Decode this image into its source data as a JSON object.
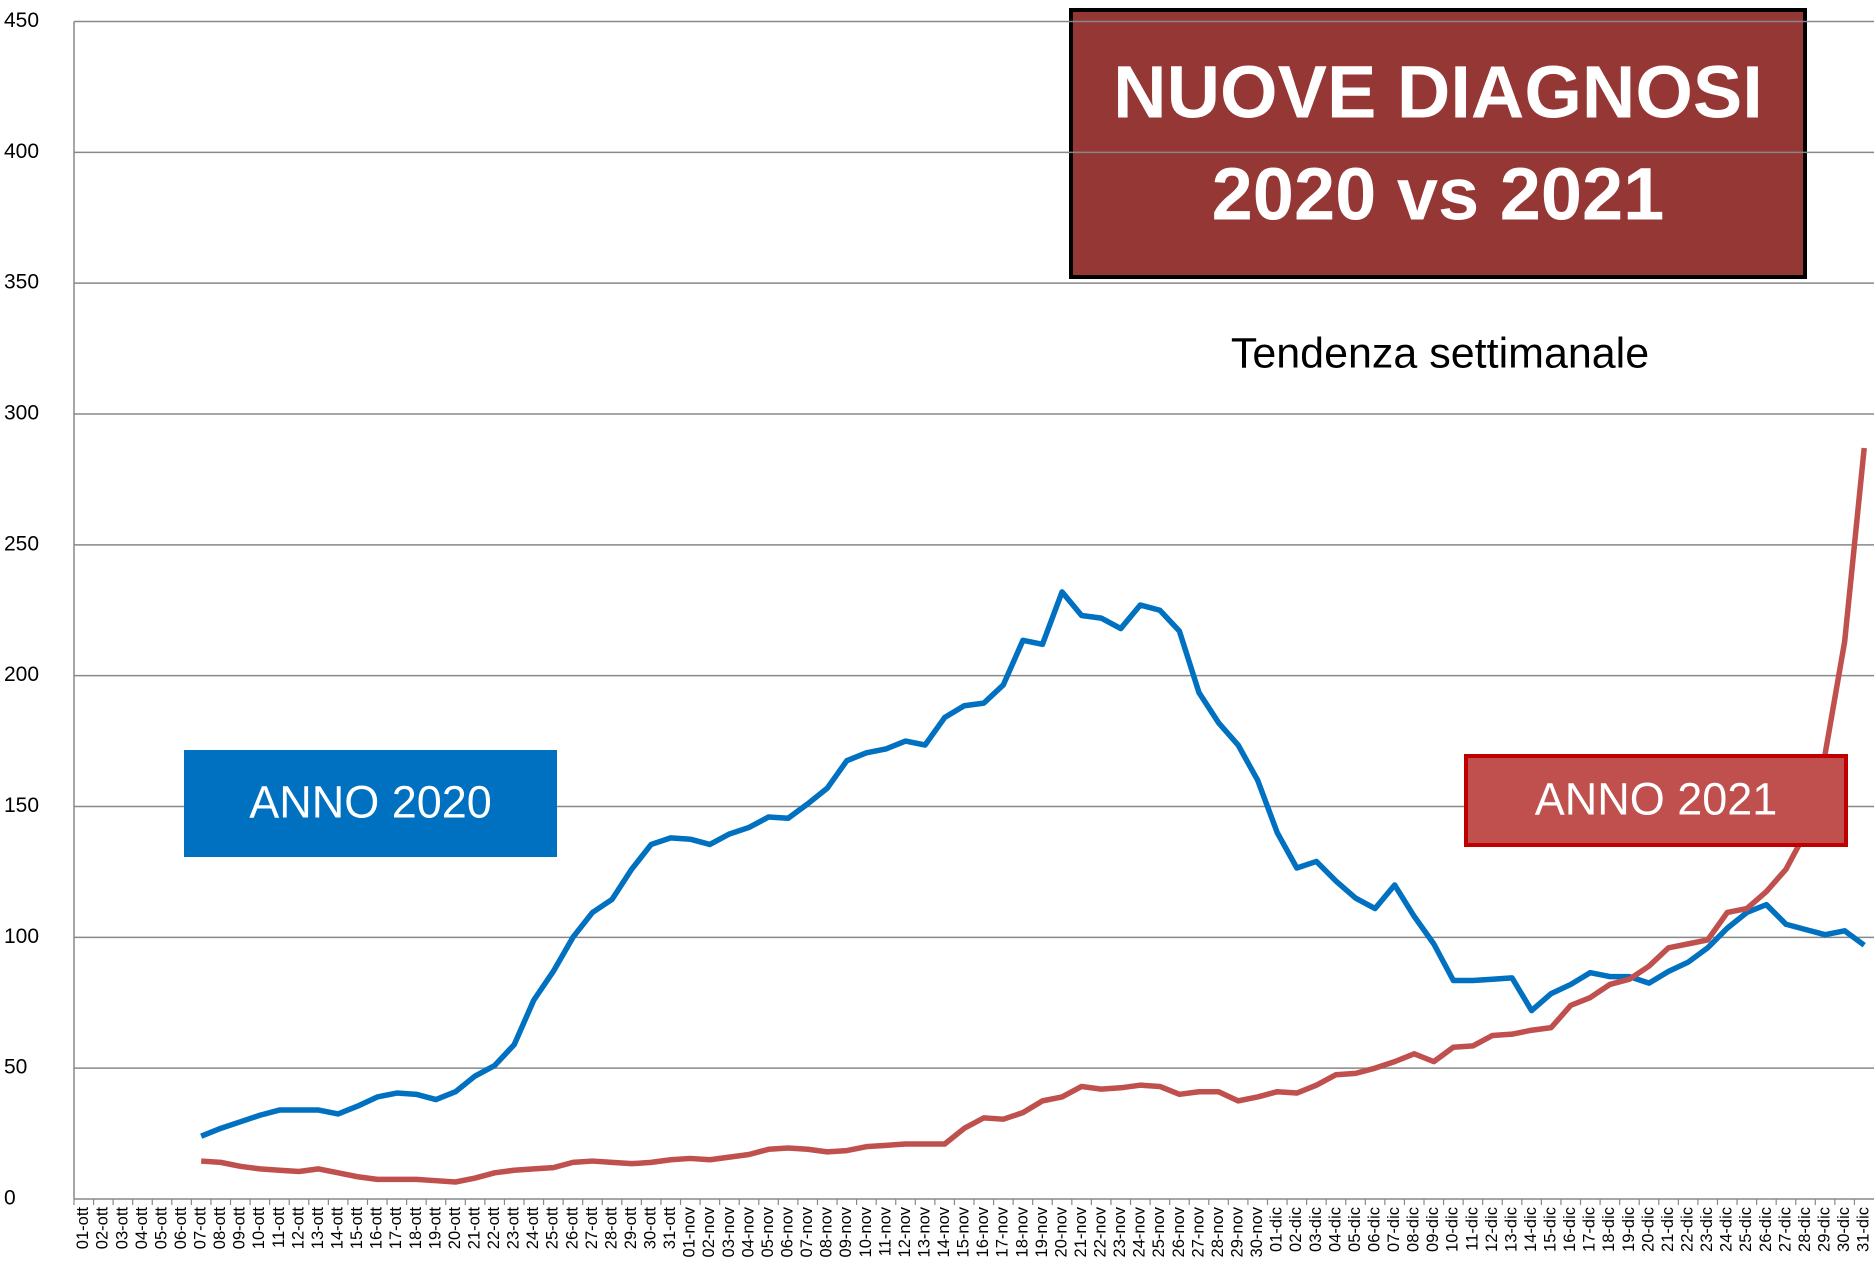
{
  "chart_data": {
    "type": "line",
    "title_lines": [
      "NUOVE DIAGNOSI",
      "2020 vs 2021"
    ],
    "subtitle": "Tendenza settimanale",
    "categories": [
      "01-ott",
      "02-ott",
      "03-ott",
      "04-ott",
      "05-ott",
      "06-ott",
      "07-ott",
      "08-ott",
      "09-ott",
      "10-ott",
      "11-ott",
      "12-ott",
      "13-ott",
      "14-ott",
      "15-ott",
      "16-ott",
      "17-ott",
      "18-ott",
      "19-ott",
      "20-ott",
      "21-ott",
      "22-ott",
      "23-ott",
      "24-ott",
      "25-ott",
      "26-ott",
      "27-ott",
      "28-ott",
      "29-ott",
      "30-ott",
      "31-ott",
      "01-nov",
      "02-nov",
      "03-nov",
      "04-nov",
      "05-nov",
      "06-nov",
      "07-nov",
      "08-nov",
      "09-nov",
      "10-nov",
      "11-nov",
      "12-nov",
      "13-nov",
      "14-nov",
      "15-nov",
      "16-nov",
      "17-nov",
      "18-nov",
      "19-nov",
      "20-nov",
      "21-nov",
      "22-nov",
      "23-nov",
      "24-nov",
      "25-nov",
      "26-nov",
      "27-nov",
      "28-nov",
      "29-nov",
      "30-nov",
      "01-dic",
      "02-dic",
      "03-dic",
      "04-dic",
      "05-dic",
      "06-dic",
      "07-dic",
      "08-dic",
      "09-dic",
      "10-dic",
      "11-dic",
      "12-dic",
      "13-dic",
      "14-dic",
      "15-dic",
      "16-dic",
      "17-dic",
      "18-dic",
      "19-dic",
      "20-dic",
      "21-dic",
      "22-dic",
      "23-dic",
      "24-dic",
      "25-dic",
      "26-dic",
      "27-dic",
      "28-dic",
      "29-dic",
      "30-dic",
      "31-dic"
    ],
    "series": [
      {
        "name": "ANNO 2020",
        "color": "#0070c0",
        "values": [
          null,
          null,
          null,
          null,
          null,
          null,
          24,
          27,
          29.5,
          32,
          34,
          34,
          34,
          32.5,
          35.5,
          39,
          40.5,
          40,
          38,
          41,
          47,
          51,
          59,
          76,
          87,
          100,
          109.5,
          114.5,
          126,
          135.5,
          138,
          137.5,
          135.5,
          139.5,
          142,
          146,
          145.5,
          151,
          157,
          167.5,
          170.5,
          172,
          175,
          173.5,
          184,
          188.5,
          189.5,
          196.5,
          213.5,
          212,
          232,
          223,
          222,
          218,
          227,
          225,
          217,
          193.5,
          182,
          173.5,
          160,
          140,
          126.5,
          129,
          121.5,
          115,
          111,
          120,
          108,
          97.5,
          83.5,
          83.5,
          84,
          84.5,
          72,
          78.5,
          82,
          86.5,
          85,
          85,
          82.5,
          87,
          90.5,
          96,
          103.5,
          109.5,
          112.5,
          105,
          103,
          101,
          102.5,
          97
        ]
      },
      {
        "name": "ANNO 2021",
        "color": "#c0504d",
        "values": [
          null,
          null,
          null,
          null,
          null,
          null,
          14.5,
          14,
          12.5,
          11.5,
          11,
          10.5,
          11.5,
          10,
          8.5,
          7.5,
          7.5,
          7.5,
          7,
          6.5,
          8,
          10,
          11,
          11.5,
          12,
          14,
          14.5,
          14,
          13.5,
          14,
          15,
          15.5,
          15,
          16,
          17,
          19,
          19.5,
          19,
          18,
          18.5,
          20,
          20.5,
          21,
          21,
          21,
          27,
          31,
          30.5,
          33,
          37.5,
          39,
          43,
          42,
          42.5,
          43.5,
          43,
          40,
          41,
          41,
          37.5,
          39,
          41,
          40.5,
          43.5,
          47.5,
          48,
          50,
          52.5,
          55.5,
          52.5,
          58,
          58.5,
          62.5,
          63,
          64.5,
          65.5,
          74,
          77,
          82,
          84,
          89,
          96,
          97.5,
          99,
          109.5,
          111,
          117.5,
          126,
          140,
          170,
          213,
          287
        ]
      }
    ],
    "ylim": [
      0,
      450
    ],
    "yticks": [
      0,
      50,
      100,
      150,
      200,
      250,
      300,
      350,
      400,
      450
    ],
    "grid": true
  }
}
